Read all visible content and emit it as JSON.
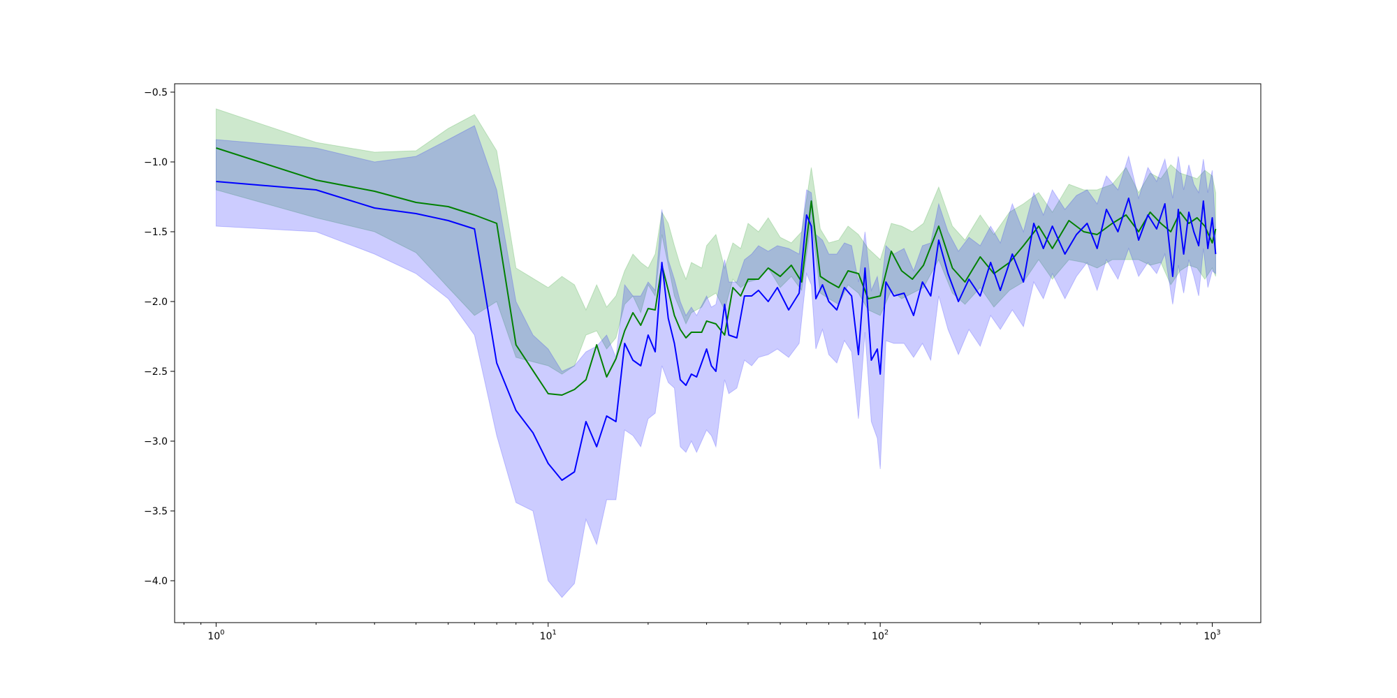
{
  "chart_data": {
    "type": "line",
    "title": "",
    "xlabel": "",
    "ylabel": "",
    "x_scale": "log",
    "xlim": [
      0.75,
      1400
    ],
    "ylim": [
      -4.3,
      -0.44
    ],
    "grid": false,
    "legend": "none",
    "x_ticks": [
      {
        "value": 1,
        "base": "10",
        "exp": "0"
      },
      {
        "value": 10,
        "base": "10",
        "exp": "1"
      },
      {
        "value": 100,
        "base": "10",
        "exp": "2"
      },
      {
        "value": 1000,
        "base": "10",
        "exp": "3"
      }
    ],
    "y_ticks": [
      {
        "value": -0.5,
        "label": "−0.5"
      },
      {
        "value": -1.0,
        "label": "−1.0"
      },
      {
        "value": -1.5,
        "label": "−1.5"
      },
      {
        "value": -2.0,
        "label": "−2.0"
      },
      {
        "value": -2.5,
        "label": "−2.5"
      },
      {
        "value": -3.0,
        "label": "−3.0"
      },
      {
        "value": -3.5,
        "label": "−3.5"
      },
      {
        "value": -4.0,
        "label": "−4.0"
      }
    ],
    "series": [
      {
        "color": "#008000",
        "band_color": "#2ca02c",
        "band_opacity": 0.24,
        "points": [
          [
            1,
            -0.9,
            -1.2,
            -0.62
          ],
          [
            2,
            -1.13,
            -1.4,
            -0.86
          ],
          [
            3,
            -1.21,
            -1.5,
            -0.93
          ],
          [
            4,
            -1.29,
            -1.65,
            -0.92
          ],
          [
            5,
            -1.32,
            -1.9,
            -0.76
          ],
          [
            6,
            -1.38,
            -2.1,
            -0.66
          ],
          [
            7,
            -1.44,
            -2.0,
            -0.92
          ],
          [
            8,
            -2.31,
            -2.4,
            -1.76
          ],
          [
            10,
            -2.66,
            -2.46,
            -1.9
          ],
          [
            11,
            -2.67,
            -2.52,
            -1.82
          ],
          [
            12,
            -2.63,
            -2.46,
            -1.88
          ],
          [
            13,
            -2.56,
            -2.24,
            -2.06
          ],
          [
            14,
            -2.31,
            -2.21,
            -1.88
          ],
          [
            15,
            -2.54,
            -2.34,
            -2.04
          ],
          [
            16,
            -2.41,
            -2.26,
            -1.96
          ],
          [
            17,
            -2.21,
            -2.02,
            -1.78
          ],
          [
            18,
            -2.08,
            -1.96,
            -1.66
          ],
          [
            19,
            -2.17,
            -2.08,
            -1.72
          ],
          [
            20,
            -2.05,
            -1.88,
            -1.76
          ],
          [
            21,
            -2.06,
            -1.96,
            -1.66
          ],
          [
            22,
            -1.74,
            -1.52,
            -1.36
          ],
          [
            23,
            -1.92,
            -1.74,
            -1.44
          ],
          [
            24,
            -2.1,
            -1.96,
            -1.6
          ],
          [
            25,
            -2.2,
            -2.06,
            -1.74
          ],
          [
            26,
            -2.26,
            -2.16,
            -1.84
          ],
          [
            27,
            -2.22,
            -2.08,
            -1.72
          ],
          [
            29,
            -2.22,
            -2.04,
            -1.76
          ],
          [
            30,
            -2.14,
            -1.98,
            -1.6
          ],
          [
            32,
            -2.16,
            -1.94,
            -1.52
          ],
          [
            34,
            -2.24,
            -2.06,
            -1.76
          ],
          [
            36,
            -1.9,
            -1.84,
            -1.58
          ],
          [
            38,
            -1.96,
            -1.9,
            -1.62
          ],
          [
            40,
            -1.84,
            -1.86,
            -1.44
          ],
          [
            43,
            -1.84,
            -1.84,
            -1.5
          ],
          [
            46,
            -1.76,
            -1.76,
            -1.4
          ],
          [
            50,
            -1.82,
            -1.9,
            -1.54
          ],
          [
            54,
            -1.74,
            -1.82,
            -1.58
          ],
          [
            58,
            -1.86,
            -1.92,
            -1.5
          ],
          [
            62,
            -1.28,
            -1.42,
            -1.04
          ],
          [
            66,
            -1.82,
            -1.94,
            -1.48
          ],
          [
            70,
            -1.86,
            -1.98,
            -1.58
          ],
          [
            75,
            -1.9,
            -2.02,
            -1.56
          ],
          [
            80,
            -1.78,
            -1.88,
            -1.46
          ],
          [
            86,
            -1.8,
            -1.94,
            -1.52
          ],
          [
            92,
            -1.98,
            -2.06,
            -1.62
          ],
          [
            100,
            -1.96,
            -2.1,
            -1.7
          ],
          [
            108,
            -1.64,
            -1.92,
            -1.44
          ],
          [
            116,
            -1.78,
            -1.98,
            -1.46
          ],
          [
            125,
            -1.84,
            -1.94,
            -1.5
          ],
          [
            135,
            -1.74,
            -1.9,
            -1.44
          ],
          [
            150,
            -1.46,
            -1.7,
            -1.18
          ],
          [
            165,
            -1.76,
            -1.94,
            -1.46
          ],
          [
            180,
            -1.86,
            -2.02,
            -1.56
          ],
          [
            200,
            -1.68,
            -1.9,
            -1.38
          ],
          [
            220,
            -1.8,
            -2.04,
            -1.52
          ],
          [
            245,
            -1.72,
            -1.92,
            -1.36
          ],
          [
            270,
            -1.6,
            -1.86,
            -1.3
          ],
          [
            300,
            -1.46,
            -1.7,
            -1.22
          ],
          [
            330,
            -1.62,
            -1.84,
            -1.36
          ],
          [
            370,
            -1.42,
            -1.7,
            -1.16
          ],
          [
            410,
            -1.5,
            -1.72,
            -1.2
          ],
          [
            450,
            -1.52,
            -1.76,
            -1.2
          ],
          [
            500,
            -1.44,
            -1.7,
            -1.16
          ],
          [
            550,
            -1.38,
            -1.7,
            -1.04
          ],
          [
            600,
            -1.5,
            -1.7,
            -1.22
          ],
          [
            650,
            -1.36,
            -1.74,
            -1.08
          ],
          [
            700,
            -1.44,
            -1.72,
            -1.12
          ],
          [
            750,
            -1.5,
            -1.88,
            -1.02
          ],
          [
            800,
            -1.36,
            -1.78,
            -1.08
          ],
          [
            850,
            -1.44,
            -1.74,
            -1.1
          ],
          [
            900,
            -1.4,
            -1.76,
            -1.12
          ],
          [
            950,
            -1.46,
            -1.84,
            -1.06
          ],
          [
            1000,
            -1.58,
            -1.76,
            -1.1
          ],
          [
            1024,
            -1.48,
            -1.82,
            -1.22
          ]
        ]
      },
      {
        "color": "#0000ff",
        "band_color": "#0000ff",
        "band_opacity": 0.2,
        "points": [
          [
            1,
            -1.14,
            -1.46,
            -0.84
          ],
          [
            2,
            -1.2,
            -1.5,
            -0.9
          ],
          [
            3,
            -1.33,
            -1.66,
            -1.0
          ],
          [
            4,
            -1.37,
            -1.8,
            -0.96
          ],
          [
            5,
            -1.42,
            -1.98,
            -0.84
          ],
          [
            6,
            -1.48,
            -2.24,
            -0.74
          ],
          [
            7,
            -2.44,
            -2.96,
            -1.2
          ],
          [
            8,
            -2.78,
            -3.44,
            -2.0
          ],
          [
            9,
            -2.94,
            -3.5,
            -2.24
          ],
          [
            10,
            -3.16,
            -4.0,
            -2.34
          ],
          [
            11,
            -3.28,
            -4.12,
            -2.5
          ],
          [
            12,
            -3.22,
            -4.02,
            -2.46
          ],
          [
            13,
            -2.86,
            -3.56,
            -2.36
          ],
          [
            14,
            -3.04,
            -3.74,
            -2.32
          ],
          [
            15,
            -2.82,
            -3.42,
            -2.24
          ],
          [
            16,
            -2.86,
            -3.42,
            -2.4
          ],
          [
            17,
            -2.3,
            -2.92,
            -1.88
          ],
          [
            18,
            -2.42,
            -2.96,
            -1.96
          ],
          [
            19,
            -2.46,
            -3.04,
            -1.96
          ],
          [
            20,
            -2.24,
            -2.84,
            -1.86
          ],
          [
            21,
            -2.36,
            -2.8,
            -1.92
          ],
          [
            22,
            -1.72,
            -2.46,
            -1.34
          ],
          [
            23,
            -2.12,
            -2.58,
            -1.7
          ],
          [
            24,
            -2.3,
            -2.62,
            -1.84
          ],
          [
            25,
            -2.56,
            -3.04,
            -2.0
          ],
          [
            26,
            -2.6,
            -3.08,
            -2.1
          ],
          [
            27,
            -2.52,
            -3.0,
            -2.04
          ],
          [
            28,
            -2.54,
            -3.08,
            -2.1
          ],
          [
            30,
            -2.34,
            -2.92,
            -1.96
          ],
          [
            31,
            -2.46,
            -2.96,
            -2.04
          ],
          [
            32,
            -2.5,
            -3.04,
            -2.02
          ],
          [
            34,
            -2.02,
            -2.56,
            -1.7
          ],
          [
            35,
            -2.24,
            -2.66,
            -1.86
          ],
          [
            37,
            -2.26,
            -2.62,
            -1.86
          ],
          [
            39,
            -1.96,
            -2.42,
            -1.7
          ],
          [
            41,
            -1.96,
            -2.46,
            -1.66
          ],
          [
            43,
            -1.92,
            -2.4,
            -1.6
          ],
          [
            46,
            -2.0,
            -2.38,
            -1.64
          ],
          [
            49,
            -1.9,
            -2.34,
            -1.6
          ],
          [
            53,
            -2.06,
            -2.4,
            -1.62
          ],
          [
            57,
            -1.94,
            -2.3,
            -1.66
          ],
          [
            60,
            -1.38,
            -1.8,
            -1.2
          ],
          [
            62,
            -1.46,
            -1.88,
            -1.22
          ],
          [
            64,
            -1.98,
            -2.34,
            -1.52
          ],
          [
            67,
            -1.88,
            -2.2,
            -1.56
          ],
          [
            70,
            -2.0,
            -2.38,
            -1.66
          ],
          [
            74,
            -2.06,
            -2.44,
            -1.66
          ],
          [
            78,
            -1.9,
            -2.28,
            -1.58
          ],
          [
            82,
            -1.96,
            -2.36,
            -1.6
          ],
          [
            86,
            -2.38,
            -2.84,
            -1.86
          ],
          [
            90,
            -1.76,
            -2.22,
            -1.5
          ],
          [
            94,
            -2.42,
            -2.86,
            -1.92
          ],
          [
            98,
            -2.34,
            -2.98,
            -1.82
          ],
          [
            100,
            -2.52,
            -3.2,
            -1.96
          ],
          [
            104,
            -1.86,
            -2.28,
            -1.6
          ],
          [
            110,
            -1.96,
            -2.3,
            -1.66
          ],
          [
            118,
            -1.94,
            -2.3,
            -1.62
          ],
          [
            126,
            -2.1,
            -2.4,
            -1.78
          ],
          [
            134,
            -1.86,
            -2.3,
            -1.6
          ],
          [
            142,
            -1.96,
            -2.42,
            -1.58
          ],
          [
            150,
            -1.56,
            -1.96,
            -1.3
          ],
          [
            160,
            -1.8,
            -2.2,
            -1.5
          ],
          [
            172,
            -2.0,
            -2.38,
            -1.64
          ],
          [
            185,
            -1.84,
            -2.2,
            -1.54
          ],
          [
            200,
            -1.96,
            -2.32,
            -1.6
          ],
          [
            215,
            -1.72,
            -2.1,
            -1.46
          ],
          [
            230,
            -1.92,
            -2.2,
            -1.58
          ],
          [
            250,
            -1.66,
            -2.06,
            -1.3
          ],
          [
            270,
            -1.86,
            -2.18,
            -1.5
          ],
          [
            290,
            -1.44,
            -1.86,
            -1.22
          ],
          [
            310,
            -1.62,
            -1.98,
            -1.38
          ],
          [
            330,
            -1.46,
            -1.8,
            -1.2
          ],
          [
            360,
            -1.66,
            -1.98,
            -1.34
          ],
          [
            390,
            -1.52,
            -1.82,
            -1.24
          ],
          [
            420,
            -1.44,
            -1.72,
            -1.2
          ],
          [
            450,
            -1.62,
            -1.92,
            -1.3
          ],
          [
            480,
            -1.34,
            -1.7,
            -1.1
          ],
          [
            520,
            -1.5,
            -1.84,
            -1.2
          ],
          [
            560,
            -1.26,
            -1.62,
            -0.96
          ],
          [
            600,
            -1.56,
            -1.82,
            -1.26
          ],
          [
            640,
            -1.38,
            -1.72,
            -1.04
          ],
          [
            680,
            -1.48,
            -1.8,
            -1.14
          ],
          [
            720,
            -1.3,
            -1.66,
            -0.98
          ],
          [
            760,
            -1.82,
            -2.02,
            -1.26
          ],
          [
            790,
            -1.34,
            -1.74,
            -0.96
          ],
          [
            820,
            -1.66,
            -1.94,
            -1.2
          ],
          [
            850,
            -1.36,
            -1.7,
            -1.02
          ],
          [
            880,
            -1.5,
            -1.82,
            -1.16
          ],
          [
            910,
            -1.6,
            -1.96,
            -1.22
          ],
          [
            940,
            -1.28,
            -1.62,
            -0.98
          ],
          [
            970,
            -1.62,
            -1.9,
            -1.22
          ],
          [
            1000,
            -1.4,
            -1.78,
            -1.06
          ],
          [
            1024,
            -1.66,
            -1.8,
            -1.5
          ]
        ]
      }
    ]
  }
}
